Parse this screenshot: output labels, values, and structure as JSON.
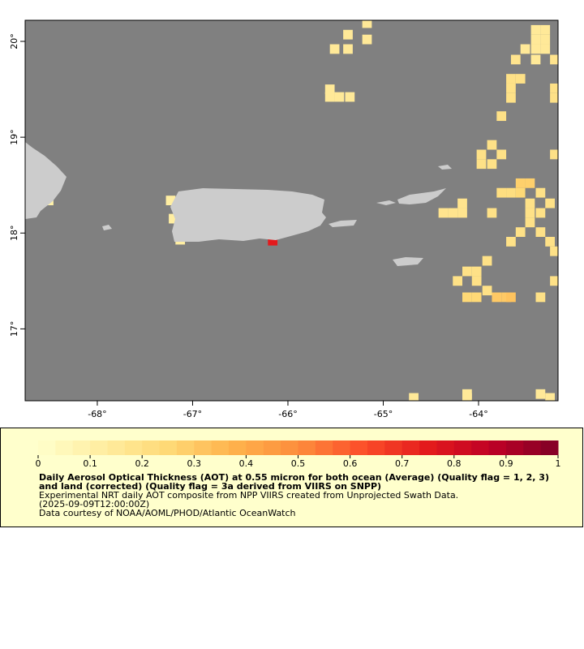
{
  "map": {
    "xlim": [
      -68.757,
      -63.166
    ],
    "ylim": [
      16.25,
      20.22
    ],
    "xticks": [
      {
        "value": -68,
        "label": "-68°"
      },
      {
        "value": -67,
        "label": "-67°"
      },
      {
        "value": -66,
        "label": "-66°"
      },
      {
        "value": -65,
        "label": "-65°"
      },
      {
        "value": -64,
        "label": "-64°"
      }
    ],
    "yticks": [
      {
        "value": 17,
        "label": "17°"
      },
      {
        "value": 18,
        "label": "18°"
      },
      {
        "value": 19,
        "label": "19°"
      },
      {
        "value": 20,
        "label": "20°"
      }
    ],
    "ocean_color": "#808080",
    "land_color": "#cccccc",
    "cell_size": 0.1,
    "cells": [
      [
        -65.17,
        20.19,
        0.15
      ],
      [
        -65.37,
        20.07,
        0.15
      ],
      [
        -65.51,
        19.92,
        0.15
      ],
      [
        -65.37,
        19.92,
        0.15
      ],
      [
        -65.17,
        20.02,
        0.15
      ],
      [
        -65.56,
        19.5,
        0.15
      ],
      [
        -65.56,
        19.42,
        0.15
      ],
      [
        -65.46,
        19.42,
        0.15
      ],
      [
        -65.35,
        19.42,
        0.15
      ],
      [
        -63.4,
        20.12,
        0.15
      ],
      [
        -63.3,
        20.12,
        0.15
      ],
      [
        -63.4,
        20.02,
        0.15
      ],
      [
        -63.3,
        20.02,
        0.15
      ],
      [
        -63.4,
        19.92,
        0.15
      ],
      [
        -63.3,
        19.92,
        0.15
      ],
      [
        -63.51,
        19.92,
        0.15
      ],
      [
        -63.61,
        19.81,
        0.18
      ],
      [
        -63.4,
        19.81,
        0.15
      ],
      [
        -63.2,
        19.81,
        0.18
      ],
      [
        -63.66,
        19.61,
        0.2
      ],
      [
        -63.56,
        19.61,
        0.2
      ],
      [
        -63.66,
        19.51,
        0.2
      ],
      [
        -63.66,
        19.41,
        0.2
      ],
      [
        -63.76,
        19.22,
        0.2
      ],
      [
        -63.2,
        19.51,
        0.2
      ],
      [
        -63.2,
        19.41,
        0.2
      ],
      [
        -63.86,
        18.92,
        0.2
      ],
      [
        -63.97,
        18.82,
        0.2
      ],
      [
        -63.76,
        18.82,
        0.2
      ],
      [
        -63.97,
        18.72,
        0.2
      ],
      [
        -63.86,
        18.72,
        0.2
      ],
      [
        -63.2,
        18.82,
        0.2
      ],
      [
        -63.56,
        18.52,
        0.28
      ],
      [
        -63.46,
        18.52,
        0.28
      ],
      [
        -63.76,
        18.42,
        0.22
      ],
      [
        -63.66,
        18.42,
        0.22
      ],
      [
        -63.56,
        18.42,
        0.25
      ],
      [
        -63.35,
        18.42,
        0.2
      ],
      [
        -63.25,
        18.31,
        0.2
      ],
      [
        -63.46,
        18.31,
        0.2
      ],
      [
        -63.46,
        18.21,
        0.2
      ],
      [
        -63.35,
        18.21,
        0.2
      ],
      [
        -63.46,
        18.11,
        0.2
      ],
      [
        -63.56,
        18.01,
        0.2
      ],
      [
        -63.66,
        17.91,
        0.2
      ],
      [
        -63.35,
        18.01,
        0.2
      ],
      [
        -63.25,
        17.91,
        0.2
      ],
      [
        -63.2,
        17.81,
        0.2
      ],
      [
        -63.86,
        18.21,
        0.2
      ],
      [
        -64.17,
        18.31,
        0.18
      ],
      [
        -64.27,
        18.21,
        0.18
      ],
      [
        -64.37,
        18.21,
        0.18
      ],
      [
        -64.17,
        18.21,
        0.18
      ],
      [
        -63.91,
        17.71,
        0.2
      ],
      [
        -64.02,
        17.6,
        0.2
      ],
      [
        -64.12,
        17.6,
        0.2
      ],
      [
        -64.22,
        17.5,
        0.2
      ],
      [
        -64.02,
        17.5,
        0.2
      ],
      [
        -63.91,
        17.4,
        0.2
      ],
      [
        -63.81,
        17.33,
        0.3
      ],
      [
        -63.71,
        17.33,
        0.3
      ],
      [
        -63.66,
        17.33,
        0.32
      ],
      [
        -64.02,
        17.33,
        0.25
      ],
      [
        -64.12,
        17.33,
        0.25
      ],
      [
        -63.2,
        17.5,
        0.2
      ],
      [
        -63.35,
        17.33,
        0.2
      ],
      [
        -64.68,
        16.28,
        0.15
      ],
      [
        -64.12,
        16.32,
        0.15
      ],
      [
        -64.12,
        16.28,
        0.15
      ],
      [
        -63.35,
        16.32,
        0.15
      ],
      [
        -63.25,
        16.28,
        0.15
      ],
      [
        -67.23,
        18.34,
        0.12
      ],
      [
        -67.2,
        18.15,
        0.12
      ],
      [
        -67.13,
        17.93,
        0.12
      ],
      [
        -66.16,
        17.92,
        0.75
      ],
      [
        -68.51,
        18.34,
        0.1
      ]
    ]
  },
  "colorbar": {
    "lim": [
      0,
      1
    ],
    "ticks": [
      0,
      0.1,
      0.2,
      0.3,
      0.4,
      0.5,
      0.6,
      0.7,
      0.8,
      0.9,
      1
    ],
    "colormap": [
      "#ffffcc",
      "#ffeda0",
      "#fed976",
      "#feb24c",
      "#fd8d3c",
      "#fc4e2a",
      "#e31a1c",
      "#bd0026",
      "#800026"
    ],
    "background": "#ffffcc"
  },
  "caption": {
    "title": "Daily Aerosol Optical Thickness (AOT) at 0.55 micron for both ocean (Average) (Quality flag = 1, 2, 3) and land (corrected) (Quality flag = 3a derived from VIIRS on SNPP)",
    "lines": [
      "Experimental NRT daily AOT composite from NPP VIIRS created from Unprojected Swath Data.",
      "(2025-09-09T12:00:00Z)",
      "Data courtesy of NOAA/AOML/PHOD/Atlantic OceanWatch"
    ]
  }
}
